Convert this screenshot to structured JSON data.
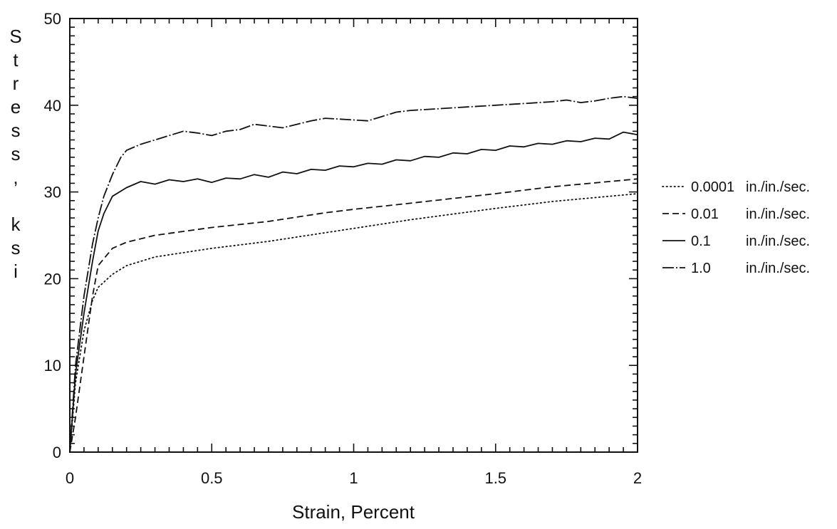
{
  "chart_data": {
    "type": "line",
    "xlabel": "Strain, Percent",
    "ylabel": "Stress, ksi",
    "xlim": [
      0,
      2
    ],
    "ylim": [
      0,
      50
    ],
    "x_ticks": [
      0,
      0.5,
      1,
      1.5,
      2
    ],
    "y_ticks": [
      0,
      10,
      20,
      30,
      40,
      50
    ],
    "x_tick_labels": [
      "0",
      "0.5",
      "1",
      "1.5",
      "2"
    ],
    "y_tick_labels": [
      "0",
      "10",
      "20",
      "30",
      "40",
      "50"
    ],
    "grid": false,
    "legend_position": "right",
    "series": [
      {
        "name": "0.0001",
        "unit_label": "in./in./sec.",
        "style": "dotted",
        "x": [
          0,
          0.02,
          0.05,
          0.08,
          0.1,
          0.15,
          0.2,
          0.3,
          0.5,
          0.7,
          0.8,
          1.0,
          1.2,
          1.5,
          1.7,
          1.9,
          2.0
        ],
        "y": [
          0,
          8,
          14,
          17.5,
          19,
          20.5,
          21.5,
          22.5,
          23.5,
          24.3,
          24.8,
          25.8,
          26.8,
          28.1,
          28.9,
          29.5,
          29.8
        ]
      },
      {
        "name": "0.01",
        "unit_label": "in./in./sec.",
        "style": "dashed",
        "x": [
          0,
          0.02,
          0.05,
          0.08,
          0.1,
          0.15,
          0.2,
          0.3,
          0.5,
          0.7,
          0.8,
          0.9,
          1.0,
          1.2,
          1.5,
          1.7,
          1.9,
          2.0
        ],
        "y": [
          0,
          4,
          11,
          18,
          21.5,
          23.5,
          24.2,
          25,
          25.9,
          26.6,
          27.1,
          27.6,
          28,
          28.7,
          29.8,
          30.6,
          31.2,
          31.5
        ]
      },
      {
        "name": "0.1",
        "unit_label": "in./in./sec.",
        "style": "solid",
        "x": [
          0,
          0.02,
          0.05,
          0.08,
          0.1,
          0.12,
          0.15,
          0.2,
          0.25,
          0.3,
          0.35,
          0.4,
          0.45,
          0.5,
          0.55,
          0.6,
          0.65,
          0.7,
          0.75,
          0.8,
          0.85,
          0.9,
          0.95,
          1.0,
          1.05,
          1.1,
          1.15,
          1.2,
          1.25,
          1.3,
          1.35,
          1.4,
          1.45,
          1.5,
          1.55,
          1.6,
          1.65,
          1.7,
          1.75,
          1.8,
          1.85,
          1.9,
          1.95,
          2.0
        ],
        "y": [
          0,
          9,
          16,
          22,
          25.5,
          27.5,
          29.5,
          30.5,
          31.2,
          30.9,
          31.4,
          31.2,
          31.5,
          31.1,
          31.6,
          31.5,
          32,
          31.7,
          32.3,
          32.1,
          32.6,
          32.5,
          33,
          32.9,
          33.3,
          33.2,
          33.7,
          33.6,
          34.1,
          34,
          34.5,
          34.4,
          34.9,
          34.8,
          35.3,
          35.2,
          35.6,
          35.5,
          35.9,
          35.8,
          36.2,
          36.1,
          36.9,
          36.6
        ]
      },
      {
        "name": "1.0",
        "unit_label": "in./in./sec.",
        "style": "dash-dot",
        "x": [
          0,
          0.02,
          0.05,
          0.08,
          0.1,
          0.12,
          0.15,
          0.18,
          0.2,
          0.25,
          0.3,
          0.35,
          0.4,
          0.45,
          0.5,
          0.55,
          0.6,
          0.65,
          0.7,
          0.75,
          0.8,
          0.85,
          0.9,
          0.95,
          1.0,
          1.05,
          1.1,
          1.15,
          1.2,
          1.3,
          1.4,
          1.5,
          1.6,
          1.7,
          1.75,
          1.8,
          1.85,
          1.9,
          1.95,
          2.0
        ],
        "y": [
          0,
          10,
          18,
          24,
          27,
          29.5,
          32,
          34,
          34.8,
          35.5,
          36,
          36.5,
          37,
          36.8,
          36.5,
          37,
          37.2,
          37.8,
          37.6,
          37.4,
          37.8,
          38.2,
          38.5,
          38.4,
          38.3,
          38.2,
          38.7,
          39.2,
          39.4,
          39.6,
          39.8,
          40,
          40.2,
          40.4,
          40.6,
          40.3,
          40.5,
          40.8,
          41,
          40.8
        ]
      }
    ]
  }
}
